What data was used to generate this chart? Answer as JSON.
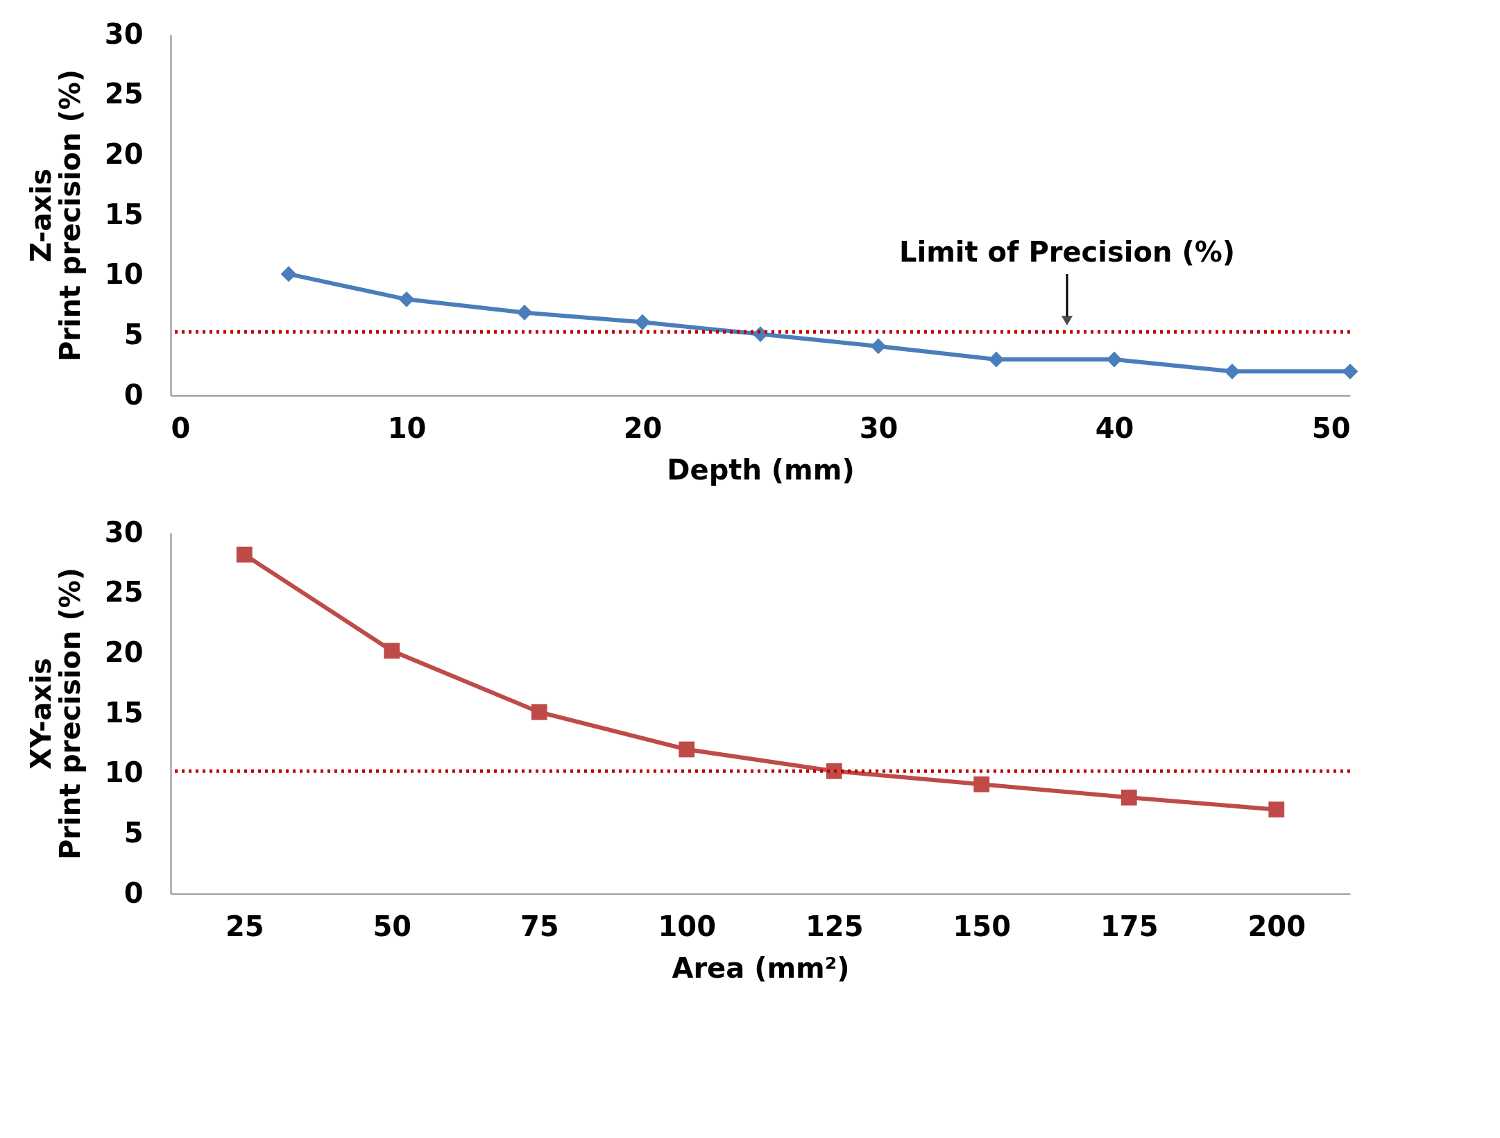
{
  "chart_data": [
    {
      "type": "line",
      "xlabel": "Depth  (mm)",
      "ylabel": "Z-axis\nPrint precision  (%)",
      "x": [
        5,
        10,
        15,
        20,
        25,
        30,
        35,
        40,
        45,
        50
      ],
      "series": [
        {
          "color": "#4a7ebb",
          "values": [
            10.1,
            8.0,
            6.9,
            6.1,
            5.1,
            4.1,
            3.0,
            3.0,
            2.0,
            2.0
          ]
        }
      ],
      "xlim": [
        0,
        50
      ],
      "xticks": [
        0,
        10,
        20,
        30,
        40,
        50
      ],
      "ylim": [
        0,
        30
      ],
      "yticks": [
        0,
        5,
        10,
        15,
        20,
        25,
        30
      ],
      "grid": false,
      "marker": "diamond",
      "ref_lines": [
        {
          "axis": "y",
          "value": 5.3,
          "color": "#c00000",
          "line_style": "dotted"
        }
      ],
      "annotations": [
        {
          "text": "Limit of Precision (%)",
          "x": 38,
          "y": 5.3
        }
      ]
    },
    {
      "type": "line",
      "xlabel": "Area  (mm²)",
      "ylabel": "XY-axis\nPrint precision  (%)",
      "x": [
        25,
        50,
        75,
        100,
        125,
        150,
        175,
        200
      ],
      "series": [
        {
          "color": "#be4b48",
          "values": [
            28.2,
            20.2,
            15.1,
            12.0,
            10.2,
            9.1,
            8.0,
            7.0
          ]
        }
      ],
      "xlim": [
        12.5,
        212.5
      ],
      "xticks": [
        25,
        50,
        75,
        100,
        125,
        150,
        175,
        200
      ],
      "ylim": [
        0,
        30
      ],
      "yticks": [
        0,
        5,
        10,
        15,
        20,
        25,
        30
      ],
      "grid": false,
      "marker": "square",
      "ref_lines": [
        {
          "axis": "y",
          "value": 10.2,
          "color": "#c00000",
          "line_style": "dotted"
        }
      ]
    }
  ]
}
